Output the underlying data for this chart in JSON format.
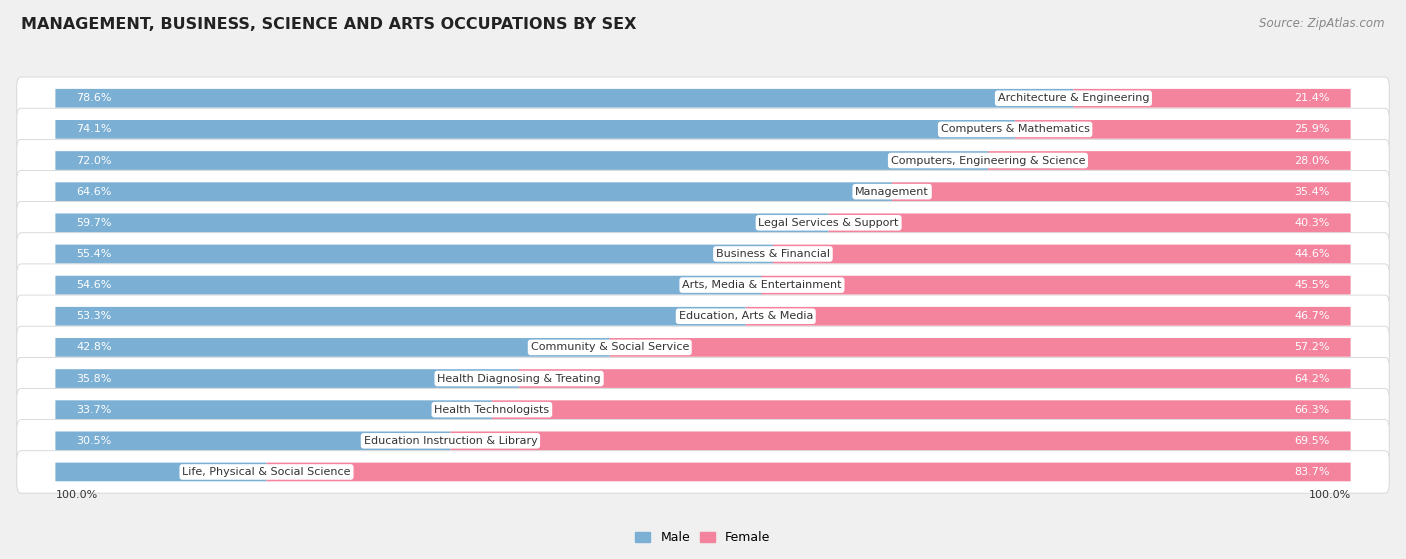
{
  "title": "MANAGEMENT, BUSINESS, SCIENCE AND ARTS OCCUPATIONS BY SEX",
  "source": "Source: ZipAtlas.com",
  "categories": [
    "Architecture & Engineering",
    "Computers & Mathematics",
    "Computers, Engineering & Science",
    "Management",
    "Legal Services & Support",
    "Business & Financial",
    "Arts, Media & Entertainment",
    "Education, Arts & Media",
    "Community & Social Service",
    "Health Diagnosing & Treating",
    "Health Technologists",
    "Education Instruction & Library",
    "Life, Physical & Social Science"
  ],
  "male_pct": [
    78.6,
    74.1,
    72.0,
    64.6,
    59.7,
    55.4,
    54.6,
    53.3,
    42.8,
    35.8,
    33.7,
    30.5,
    16.3
  ],
  "female_pct": [
    21.4,
    25.9,
    28.0,
    35.4,
    40.3,
    44.6,
    45.5,
    46.7,
    57.2,
    64.2,
    66.3,
    69.5,
    83.7
  ],
  "male_color": "#7bafd4",
  "female_color": "#f4839d",
  "background_color": "#f0f0f0",
  "row_bg_color": "#ffffff",
  "title_fontsize": 11.5,
  "source_fontsize": 8.5,
  "cat_label_fontsize": 8,
  "bar_label_fontsize": 8,
  "legend_fontsize": 9,
  "male_label_threshold": 20,
  "female_label_threshold": 20
}
